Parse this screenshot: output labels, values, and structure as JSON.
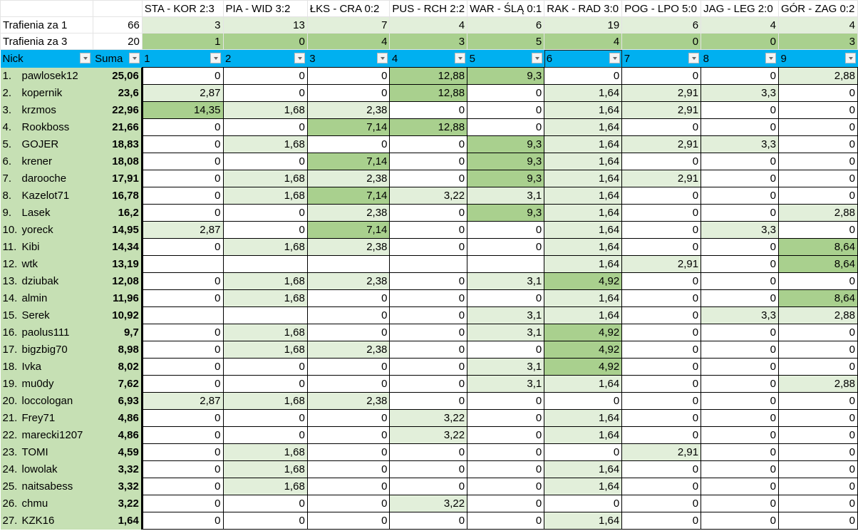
{
  "matches": [
    "STA - KOR 2:3",
    "PIA - WID 3:2",
    "ŁKS - CRA 0:2",
    "PUS - RCH 2:2",
    "WAR - ŚLĄ 0:1",
    "RAK - RAD 3:0",
    "POG - LPO 5:0",
    "JAG - LEG 2:0",
    "GÓR - ZAG 0:2"
  ],
  "hits1": {
    "label": "Trafienia za 1",
    "total": "66",
    "values": [
      "3",
      "13",
      "7",
      "4",
      "6",
      "19",
      "6",
      "4",
      "4"
    ]
  },
  "hits3": {
    "label": "Trafienia za 3",
    "total": "20",
    "values": [
      "1",
      "0",
      "4",
      "3",
      "5",
      "4",
      "0",
      "0",
      "3"
    ]
  },
  "header": {
    "nick": "Nick",
    "sum": "Suma",
    "cols": [
      "1",
      "2",
      "3",
      "4",
      "5",
      "6",
      "7",
      "8",
      "9"
    ]
  },
  "colors": {
    "header": "#00b0f0",
    "light_green": "#e2efda",
    "medium_green": "#a9d08e",
    "name_fill": "#c6e0b4"
  },
  "rows": [
    {
      "rank": "1.",
      "nick": "pawlosek12",
      "sum": "25,06",
      "cells": [
        "0",
        "0",
        "0",
        "12,88",
        "9,3",
        "0",
        "0",
        "0",
        "2,88"
      ]
    },
    {
      "rank": "2.",
      "nick": "kopernik",
      "sum": "23,6",
      "cells": [
        "2,87",
        "0",
        "0",
        "12,88",
        "0",
        "1,64",
        "2,91",
        "3,3",
        "0"
      ]
    },
    {
      "rank": "3.",
      "nick": "krzmos",
      "sum": "22,96",
      "cells": [
        "14,35",
        "1,68",
        "2,38",
        "0",
        "0",
        "1,64",
        "2,91",
        "0",
        "0"
      ]
    },
    {
      "rank": "4.",
      "nick": "Rookboss",
      "sum": "21,66",
      "cells": [
        "0",
        "0",
        "7,14",
        "12,88",
        "0",
        "1,64",
        "0",
        "0",
        "0"
      ]
    },
    {
      "rank": "5.",
      "nick": "GOJER",
      "sum": "18,83",
      "cells": [
        "0",
        "1,68",
        "0",
        "0",
        "9,3",
        "1,64",
        "2,91",
        "3,3",
        "0"
      ]
    },
    {
      "rank": "6.",
      "nick": "krener",
      "sum": "18,08",
      "cells": [
        "0",
        "0",
        "7,14",
        "0",
        "9,3",
        "1,64",
        "0",
        "0",
        "0"
      ]
    },
    {
      "rank": "7.",
      "nick": "darooche",
      "sum": "17,91",
      "cells": [
        "0",
        "1,68",
        "2,38",
        "0",
        "9,3",
        "1,64",
        "2,91",
        "0",
        "0"
      ]
    },
    {
      "rank": "8.",
      "nick": "Kazelot71",
      "sum": "16,78",
      "cells": [
        "0",
        "1,68",
        "7,14",
        "3,22",
        "3,1",
        "1,64",
        "0",
        "0",
        "0"
      ]
    },
    {
      "rank": "9.",
      "nick": "Lasek",
      "sum": "16,2",
      "cells": [
        "0",
        "0",
        "2,38",
        "0",
        "9,3",
        "1,64",
        "0",
        "0",
        "2,88"
      ]
    },
    {
      "rank": "10.",
      "nick": "yoreck",
      "sum": "14,95",
      "cells": [
        "2,87",
        "0",
        "7,14",
        "0",
        "0",
        "1,64",
        "0",
        "3,3",
        "0"
      ]
    },
    {
      "rank": "11.",
      "nick": "Kibi",
      "sum": "14,34",
      "cells": [
        "0",
        "1,68",
        "2,38",
        "0",
        "0",
        "1,64",
        "0",
        "0",
        "8,64"
      ]
    },
    {
      "rank": "12.",
      "nick": "wtk",
      "sum": "13,19",
      "cells": [
        "",
        "",
        "",
        "",
        "",
        "1,64",
        "2,91",
        "0",
        "8,64"
      ]
    },
    {
      "rank": "13.",
      "nick": "dziubak",
      "sum": "12,08",
      "cells": [
        "0",
        "1,68",
        "2,38",
        "0",
        "3,1",
        "4,92",
        "0",
        "0",
        "0"
      ]
    },
    {
      "rank": "14.",
      "nick": "almin",
      "sum": "11,96",
      "cells": [
        "0",
        "1,68",
        "0",
        "0",
        "0",
        "1,64",
        "0",
        "0",
        "8,64"
      ]
    },
    {
      "rank": "15.",
      "nick": "Serek",
      "sum": "10,92",
      "cells": [
        "",
        "",
        "0",
        "0",
        "3,1",
        "1,64",
        "0",
        "3,3",
        "2,88"
      ]
    },
    {
      "rank": "16.",
      "nick": "paolus111",
      "sum": "9,7",
      "cells": [
        "0",
        "1,68",
        "0",
        "0",
        "3,1",
        "4,92",
        "0",
        "0",
        "0"
      ]
    },
    {
      "rank": "17.",
      "nick": "bigzbig70",
      "sum": "8,98",
      "cells": [
        "0",
        "1,68",
        "2,38",
        "0",
        "0",
        "4,92",
        "0",
        "0",
        "0"
      ]
    },
    {
      "rank": "18.",
      "nick": "Ivka",
      "sum": "8,02",
      "cells": [
        "0",
        "0",
        "0",
        "0",
        "3,1",
        "4,92",
        "0",
        "0",
        "0"
      ]
    },
    {
      "rank": "19.",
      "nick": "mu0dy",
      "sum": "7,62",
      "cells": [
        "0",
        "0",
        "0",
        "0",
        "3,1",
        "1,64",
        "0",
        "0",
        "2,88"
      ]
    },
    {
      "rank": "20.",
      "nick": "loccologan",
      "sum": "6,93",
      "cells": [
        "2,87",
        "1,68",
        "2,38",
        "0",
        "0",
        "0",
        "0",
        "0",
        "0"
      ]
    },
    {
      "rank": "21.",
      "nick": "Frey71",
      "sum": "4,86",
      "cells": [
        "0",
        "0",
        "0",
        "3,22",
        "0",
        "1,64",
        "0",
        "0",
        "0"
      ]
    },
    {
      "rank": "22.",
      "nick": "marecki1207",
      "sum": "4,86",
      "cells": [
        "0",
        "0",
        "0",
        "3,22",
        "0",
        "1,64",
        "0",
        "0",
        "0"
      ]
    },
    {
      "rank": "23.",
      "nick": "TOMI",
      "sum": "4,59",
      "cells": [
        "0",
        "1,68",
        "0",
        "0",
        "0",
        "0",
        "2,91",
        "0",
        "0"
      ]
    },
    {
      "rank": "24.",
      "nick": "lowolak",
      "sum": "3,32",
      "cells": [
        "0",
        "1,68",
        "0",
        "0",
        "0",
        "1,64",
        "0",
        "0",
        "0"
      ]
    },
    {
      "rank": "25.",
      "nick": "naitsabess",
      "sum": "3,32",
      "cells": [
        "0",
        "1,68",
        "0",
        "0",
        "0",
        "1,64",
        "0",
        "0",
        "0"
      ]
    },
    {
      "rank": "26.",
      "nick": "chmu",
      "sum": "3,22",
      "cells": [
        "0",
        "0",
        "0",
        "3,22",
        "0",
        "0",
        "0",
        "0",
        "0"
      ]
    },
    {
      "rank": "27.",
      "nick": "KZK16",
      "sum": "1,64",
      "cells": [
        "0",
        "0",
        "0",
        "0",
        "0",
        "1,64",
        "0",
        "0",
        "0"
      ]
    }
  ]
}
